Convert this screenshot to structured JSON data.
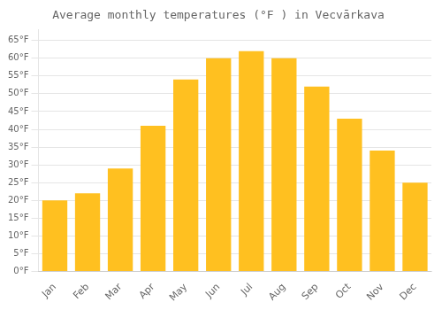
{
  "chart_data": {
    "type": "bar",
    "title": "Average monthly temperatures (°F ) in Vecvārkava",
    "categories": [
      "Jan",
      "Feb",
      "Mar",
      "Apr",
      "May",
      "Jun",
      "Jul",
      "Aug",
      "Sep",
      "Oct",
      "Nov",
      "Dec"
    ],
    "values": [
      20,
      22,
      29,
      41,
      54,
      60,
      62,
      60,
      52,
      43,
      34,
      25
    ],
    "color": "#FFC020",
    "ylim": [
      0,
      68
    ],
    "yticks": [
      {
        "value": 0,
        "label": "0°F"
      },
      {
        "value": 5,
        "label": "5°F"
      },
      {
        "value": 10,
        "label": "10°F"
      },
      {
        "value": 15,
        "label": "15°F"
      },
      {
        "value": 20,
        "label": "20°F"
      },
      {
        "value": 25,
        "label": "25°F"
      },
      {
        "value": 30,
        "label": "30°F"
      },
      {
        "value": 35,
        "label": "35°F"
      },
      {
        "value": 40,
        "label": "40°F"
      },
      {
        "value": 45,
        "label": "45°F"
      },
      {
        "value": 50,
        "label": "50°F"
      },
      {
        "value": 55,
        "label": "55°F"
      },
      {
        "value": 60,
        "label": "60°F"
      },
      {
        "value": 65,
        "label": "65°F"
      }
    ],
    "grid": true
  }
}
